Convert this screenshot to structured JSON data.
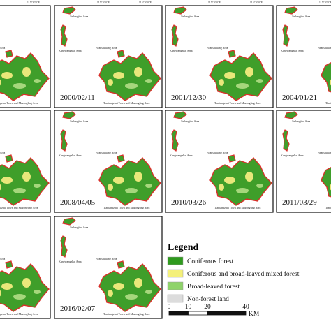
{
  "axis_labels": [
    "115°20'0\"E",
    "115°30'0\"E"
  ],
  "area_labels": {
    "north": "Jinlongjiao Area",
    "west": "Kangwangzhai Area",
    "center": "Wanshuilang Area",
    "south": "Tiantangzhai Town and Mazongling Area"
  },
  "panels": [
    {},
    {
      "date": "2000/02/11"
    },
    {
      "date": "2001/12/30"
    },
    {
      "date": "2004/01/21"
    },
    {},
    {
      "date": "2008/04/05"
    },
    {
      "date": "2010/03/26"
    },
    {
      "date": "2011/03/29"
    },
    {},
    {
      "date": "2016/02/07"
    }
  ],
  "legend": {
    "title": "Legend",
    "items": [
      {
        "label": "Coniferous forest",
        "color": "#2f9a1e"
      },
      {
        "label": "Coniferous and broad-leaved mixed forest",
        "color": "#f4f07a"
      },
      {
        "label": "Broad-leaved forest",
        "color": "#8fd36a"
      },
      {
        "label": "Non-forest land",
        "color": "#dcdcdc"
      }
    ],
    "scale": {
      "ticks": [
        0,
        10,
        20,
        40
      ],
      "unit": "KM"
    }
  }
}
